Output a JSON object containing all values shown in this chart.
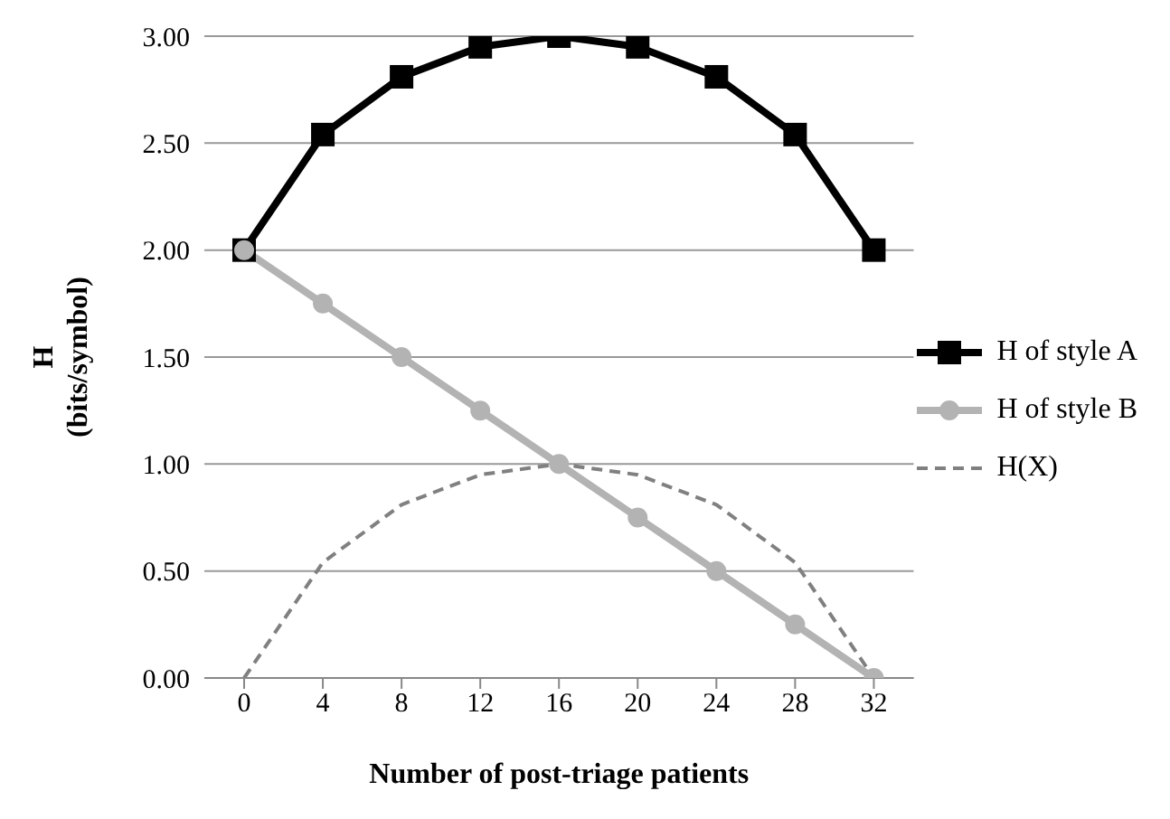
{
  "chart_data": {
    "type": "line",
    "xlabel": "Number of post-triage patients",
    "ylabel": "H\n(bits/symbol)",
    "categories": [
      "0",
      "4",
      "8",
      "12",
      "16",
      "20",
      "24",
      "28",
      "32"
    ],
    "series": [
      {
        "name": "H of style A",
        "color": "#000000",
        "marker": "square",
        "line_style": "solid",
        "values": [
          2.0,
          2.54,
          2.81,
          2.95,
          3.0,
          2.95,
          2.81,
          2.54,
          2.0
        ]
      },
      {
        "name": "H of style B",
        "color": "#b3b3b3",
        "marker": "circle",
        "line_style": "solid",
        "values": [
          2.0,
          1.75,
          1.5,
          1.25,
          1.0,
          0.75,
          0.5,
          0.25,
          0.0
        ]
      },
      {
        "name": "H(X)",
        "color": "#808080",
        "marker": "none",
        "line_style": "dashed",
        "values": [
          0.0,
          0.54,
          0.81,
          0.95,
          1.0,
          0.95,
          0.81,
          0.54,
          0.0
        ]
      }
    ],
    "ylim": [
      0,
      3
    ],
    "yticks": [
      {
        "value": 0,
        "label": "0.00"
      },
      {
        "value": 0.5,
        "label": "0.50"
      },
      {
        "value": 1,
        "label": "1.00"
      },
      {
        "value": 1.5,
        "label": "1.50"
      },
      {
        "value": 2,
        "label": "2.00"
      },
      {
        "value": 2.5,
        "label": "2.50"
      },
      {
        "value": 3,
        "label": "3.00"
      }
    ],
    "grid": "y",
    "legend": "right"
  }
}
